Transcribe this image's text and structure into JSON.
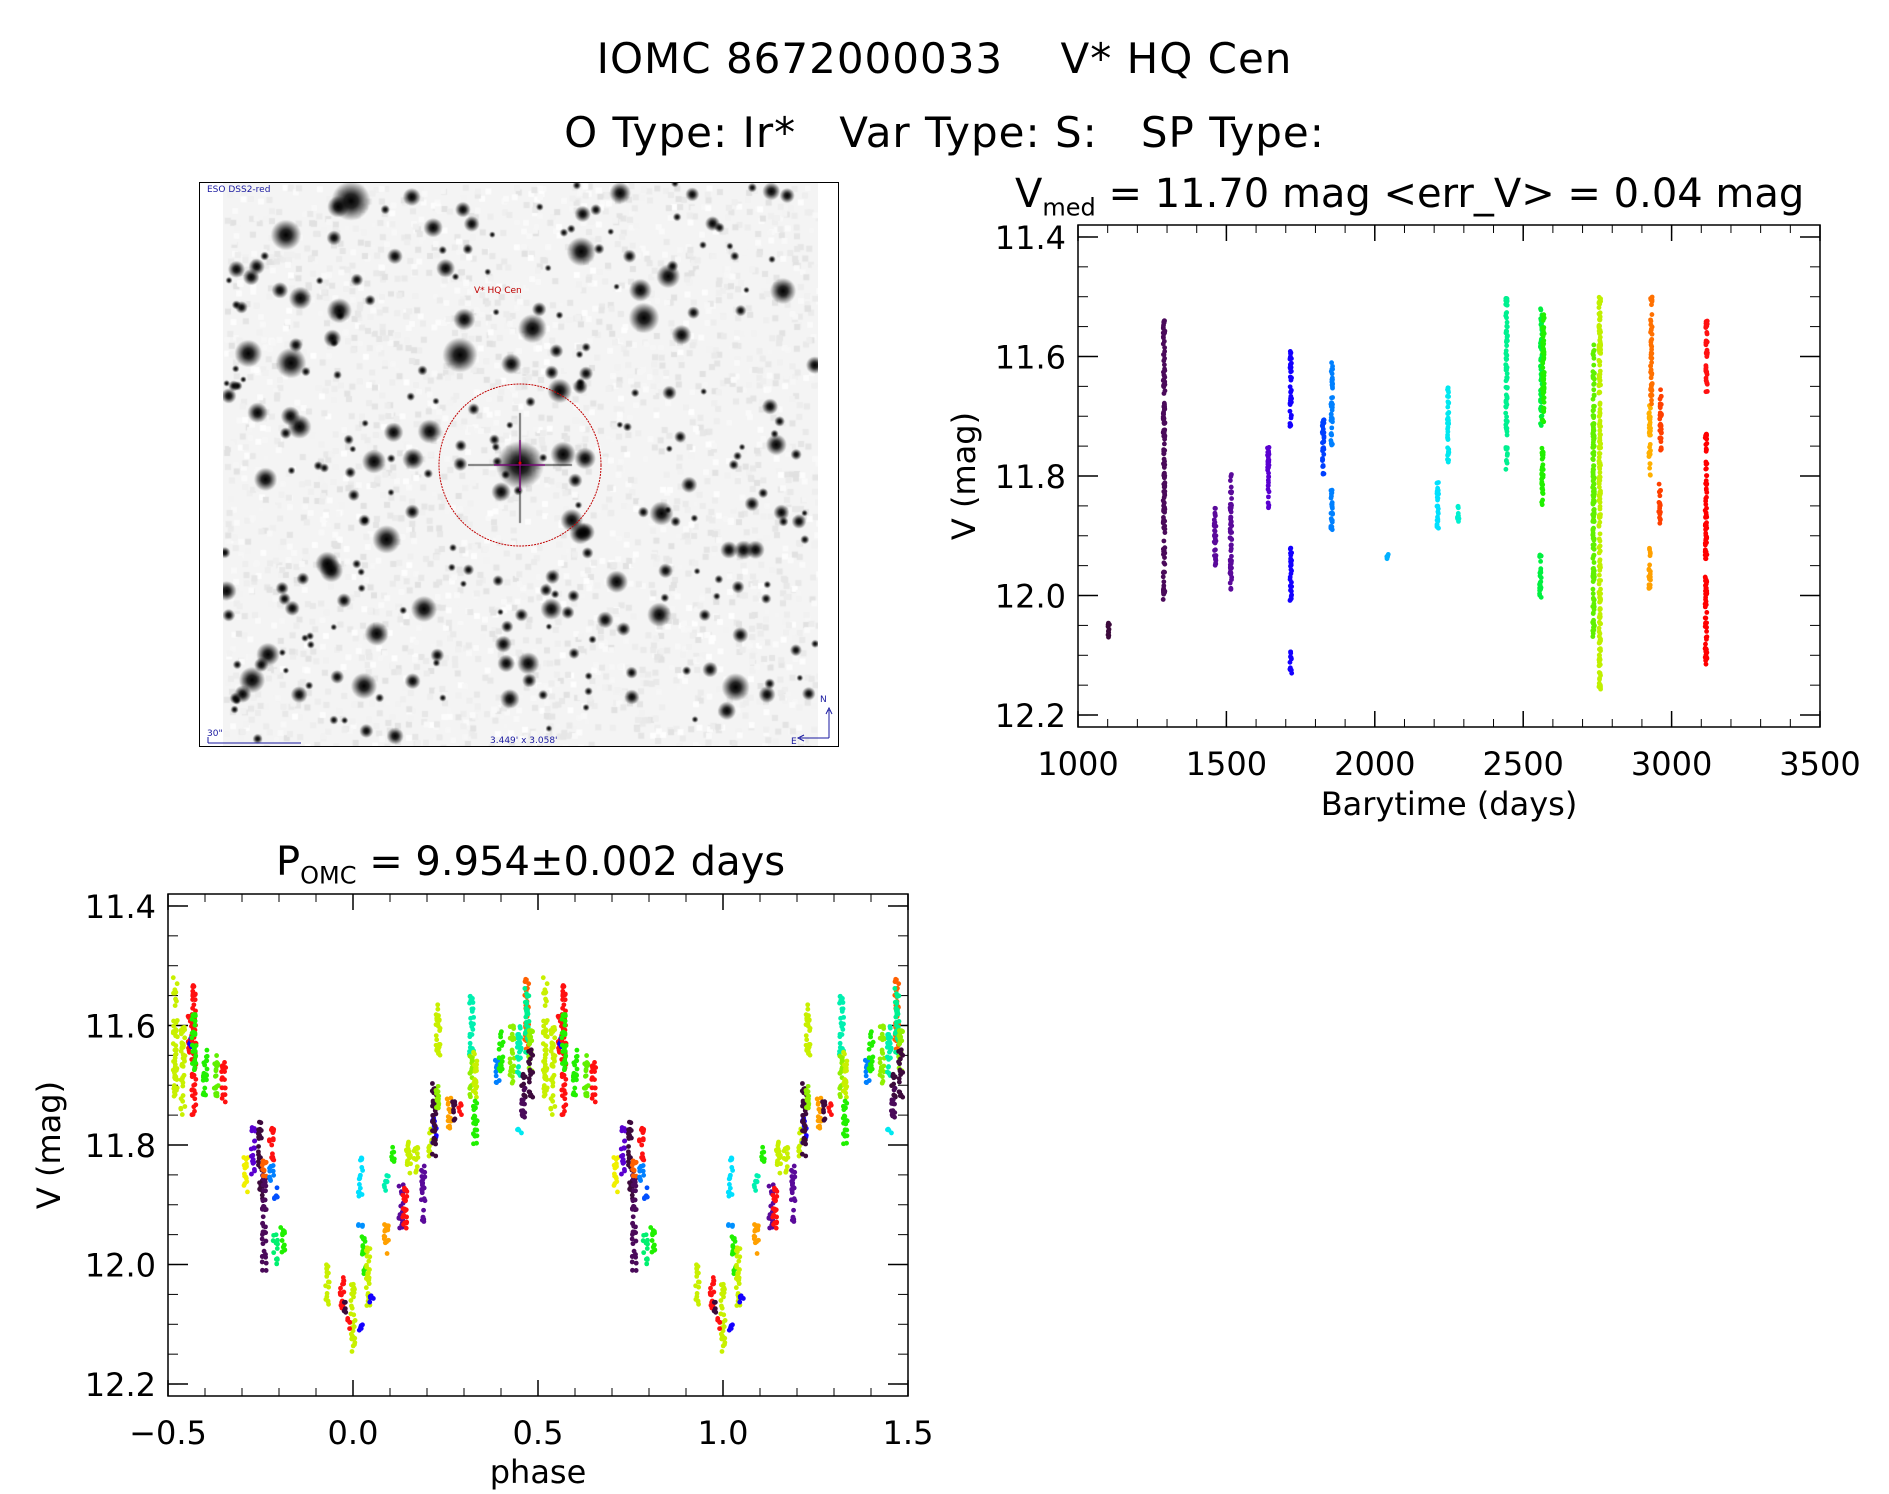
{
  "header": {
    "title": "IOMC 8672000033    V* HQ Cen",
    "subtitle": "O Type: Ir*   Var Type: S:   SP Type:"
  },
  "finder_image": {
    "survey_label": "ESO DSS2-red",
    "target_label": "V* HQ Cen",
    "scale_label": "30\"",
    "field_size": "3.449' x 3.058'",
    "north_label": "N",
    "east_label": "E"
  },
  "chart_data": [
    {
      "type": "scatter",
      "title_main": "V",
      "title_sub": "med",
      "title_rest": " = 11.70 mag <err_V> = 0.04 mag",
      "xlabel": "Barytime (days)",
      "ylabel": "V (mag)",
      "xlim": [
        1000,
        3500
      ],
      "ylim": [
        11.38,
        12.22
      ],
      "y_inverted": true,
      "xticks": [
        "1000",
        "1500",
        "2000",
        "2500",
        "3000",
        "3500"
      ],
      "yticks": [
        "11.4",
        "11.6",
        "11.8",
        "12.0",
        "12.2"
      ],
      "groups": [
        {
          "t": 1104,
          "v": [
            12.04,
            12.07
          ],
          "color": "#3c0a3c"
        },
        {
          "t": 1290,
          "v": [
            11.54,
            12.01
          ],
          "color": "#4a0a5a"
        },
        {
          "t": 1462,
          "v": [
            11.85,
            11.95
          ],
          "color": "#5a0a9a"
        },
        {
          "t": 1515,
          "v": [
            11.79,
            11.99
          ],
          "color": "#5a0a9a"
        },
        {
          "t": 1641,
          "v": [
            11.75,
            11.86
          ],
          "color": "#5a00d0"
        },
        {
          "t": 1717,
          "v": [
            11.59,
            11.72
          ],
          "color": "#1400ff"
        },
        {
          "t": 1717,
          "v": [
            11.92,
            12.01
          ],
          "color": "#1400ff"
        },
        {
          "t": 1717,
          "v": [
            12.09,
            12.13
          ],
          "color": "#1400ff"
        },
        {
          "t": 1826,
          "v": [
            11.69,
            11.8
          ],
          "color": "#0040ff"
        },
        {
          "t": 1855,
          "v": [
            11.61,
            11.75
          ],
          "color": "#0080ff"
        },
        {
          "t": 1855,
          "v": [
            11.82,
            11.9
          ],
          "color": "#0080ff"
        },
        {
          "t": 2043,
          "v": [
            11.93,
            11.94
          ],
          "color": "#00b0ff"
        },
        {
          "t": 2212,
          "v": [
            11.8,
            11.89
          ],
          "color": "#00e0ff"
        },
        {
          "t": 2247,
          "v": [
            11.65,
            11.78
          ],
          "color": "#00e8f0"
        },
        {
          "t": 2281,
          "v": [
            11.85,
            11.88
          ],
          "color": "#00f0d0"
        },
        {
          "t": 2444,
          "v": [
            11.5,
            11.79
          ],
          "color": "#00f090"
        },
        {
          "t": 2561,
          "v": [
            11.52,
            11.72
          ],
          "color": "#00f040"
        },
        {
          "t": 2568,
          "v": [
            11.53,
            11.71
          ],
          "color": "#20f000"
        },
        {
          "t": 2565,
          "v": [
            11.75,
            11.85
          ],
          "color": "#20f000"
        },
        {
          "t": 2558,
          "v": [
            11.93,
            12.01
          ],
          "color": "#00f040"
        },
        {
          "t": 2737,
          "v": [
            11.58,
            12.07
          ],
          "color": "#60f000"
        },
        {
          "t": 2758,
          "v": [
            11.5,
            12.16
          ],
          "color": "#c0f000"
        },
        {
          "t": 2926,
          "v": [
            11.68,
            11.8
          ],
          "color": "#ffb000"
        },
        {
          "t": 2926,
          "v": [
            11.92,
            11.99
          ],
          "color": "#ffa000"
        },
        {
          "t": 2932,
          "v": [
            11.5,
            11.68
          ],
          "color": "#ff7000"
        },
        {
          "t": 2963,
          "v": [
            11.65,
            11.76
          ],
          "color": "#ff4000"
        },
        {
          "t": 2960,
          "v": [
            11.81,
            11.88
          ],
          "color": "#ff4000"
        },
        {
          "t": 3118,
          "v": [
            11.54,
            11.66
          ],
          "color": "#ff1010"
        },
        {
          "t": 3116,
          "v": [
            11.73,
            11.94
          ],
          "color": "#ff0000"
        },
        {
          "t": 3116,
          "v": [
            11.96,
            12.12
          ],
          "color": "#ff0000"
        }
      ]
    },
    {
      "type": "scatter",
      "title_main": "P",
      "title_sub": "OMC",
      "title_rest": " = 9.954±0.002 days",
      "xlabel": "phase",
      "ylabel": "V (mag)",
      "xlim": [
        -0.5,
        1.5
      ],
      "ylim": [
        11.38,
        12.22
      ],
      "y_inverted": true,
      "xticks": [
        "−0.5",
        "0.0",
        "0.5",
        "1.0",
        "1.5"
      ],
      "yticks": [
        "11.4",
        "11.6",
        "11.8",
        "12.0",
        "12.2"
      ],
      "period_days": 9.954,
      "phase_groups": [
        {
          "p": -0.48,
          "v": [
            11.52,
            11.72
          ],
          "color": "#c8f000"
        },
        {
          "p": -0.46,
          "v": [
            11.6,
            11.75
          ],
          "color": "#c8f000"
        },
        {
          "p": -0.44,
          "v": [
            11.58,
            11.65
          ],
          "color": "#ff1010"
        },
        {
          "p": -0.44,
          "v": [
            11.61,
            11.64
          ],
          "color": "#1400ff"
        },
        {
          "p": -0.43,
          "v": [
            11.53,
            11.75
          ],
          "color": "#ff1010"
        },
        {
          "p": -0.43,
          "v": [
            11.58,
            11.68
          ],
          "color": "#20f000"
        },
        {
          "p": -0.4,
          "v": [
            11.64,
            11.72
          ],
          "color": "#20f000"
        },
        {
          "p": -0.37,
          "v": [
            11.65,
            11.72
          ],
          "color": "#60f000"
        },
        {
          "p": -0.35,
          "v": [
            11.66,
            11.73
          ],
          "color": "#ff1010"
        },
        {
          "p": -0.29,
          "v": [
            11.82,
            11.88
          ],
          "color": "#f0f000"
        },
        {
          "p": -0.27,
          "v": [
            11.77,
            11.85
          ],
          "color": "#5a00d0"
        },
        {
          "p": -0.25,
          "v": [
            11.76,
            11.89
          ],
          "color": "#3c0a3c"
        },
        {
          "p": -0.24,
          "v": [
            11.84,
            12.01
          ],
          "color": "#4a0a5a"
        },
        {
          "p": -0.24,
          "v": [
            11.82,
            11.86
          ],
          "color": "#ff6000"
        },
        {
          "p": -0.22,
          "v": [
            11.77,
            11.83
          ],
          "color": "#ff1010"
        },
        {
          "p": -0.22,
          "v": [
            11.83,
            11.87
          ],
          "color": "#0080ff"
        },
        {
          "p": -0.21,
          "v": [
            11.87,
            11.89
          ],
          "color": "#0050ff"
        },
        {
          "p": -0.19,
          "v": [
            11.93,
            11.98
          ],
          "color": "#20f000"
        },
        {
          "p": -0.21,
          "v": [
            11.95,
            12.0
          ],
          "color": "#00f070"
        },
        {
          "p": -0.07,
          "v": [
            12.0,
            12.07
          ],
          "color": "#c8f000"
        },
        {
          "p": -0.03,
          "v": [
            12.02,
            12.08
          ],
          "color": "#ff1010"
        },
        {
          "p": -0.02,
          "v": [
            12.06,
            12.08
          ],
          "color": "#3c0a3c"
        },
        {
          "p": 0.0,
          "v": [
            12.03,
            12.15
          ],
          "color": "#c8f000"
        },
        {
          "p": -0.01,
          "v": [
            12.09,
            12.11
          ],
          "color": "#ff1010"
        },
        {
          "p": 0.02,
          "v": [
            11.82,
            11.89
          ],
          "color": "#00e0ff"
        },
        {
          "p": 0.02,
          "v": [
            12.1,
            12.12
          ],
          "color": "#1400ff"
        },
        {
          "p": 0.02,
          "v": [
            11.93,
            11.94
          ],
          "color": "#0090ff"
        },
        {
          "p": 0.03,
          "v": [
            11.95,
            12.02
          ],
          "color": "#20f000"
        },
        {
          "p": 0.04,
          "v": [
            11.97,
            12.07
          ],
          "color": "#c8f000"
        },
        {
          "p": 0.05,
          "v": [
            12.05,
            12.07
          ],
          "color": "#1400ff"
        },
        {
          "p": 0.09,
          "v": [
            11.93,
            11.99
          ],
          "color": "#ffa000"
        },
        {
          "p": 0.09,
          "v": [
            11.85,
            11.88
          ],
          "color": "#00f0b0"
        },
        {
          "p": 0.11,
          "v": [
            11.8,
            11.83
          ],
          "color": "#20f000"
        },
        {
          "p": 0.13,
          "v": [
            11.86,
            11.94
          ],
          "color": "#5a0a9a"
        },
        {
          "p": 0.14,
          "v": [
            11.87,
            11.95
          ],
          "color": "#ff1010"
        },
        {
          "p": 0.15,
          "v": [
            11.78,
            11.85
          ],
          "color": "#c8f000"
        },
        {
          "p": 0.17,
          "v": [
            11.8,
            11.85
          ],
          "color": "#c8f000"
        },
        {
          "p": 0.19,
          "v": [
            11.83,
            11.93
          ],
          "color": "#5a0a9a"
        },
        {
          "p": 0.21,
          "v": [
            11.77,
            11.82
          ],
          "color": "#c8f000"
        },
        {
          "p": 0.22,
          "v": [
            11.75,
            11.8
          ],
          "color": "#1400ff"
        },
        {
          "p": 0.22,
          "v": [
            11.69,
            11.82
          ],
          "color": "#3c0a3c"
        },
        {
          "p": 0.23,
          "v": [
            11.7,
            11.75
          ],
          "color": "#90f000"
        },
        {
          "p": 0.23,
          "v": [
            11.55,
            11.65
          ],
          "color": "#c8f000"
        },
        {
          "p": 0.26,
          "v": [
            11.72,
            11.78
          ],
          "color": "#ffa000"
        },
        {
          "p": 0.27,
          "v": [
            11.72,
            11.76
          ],
          "color": "#3c0a3c"
        },
        {
          "p": 0.29,
          "v": [
            11.73,
            11.75
          ],
          "color": "#ff1010"
        },
        {
          "p": 0.32,
          "v": [
            11.55,
            11.65
          ],
          "color": "#00f0b0"
        },
        {
          "p": 0.32,
          "v": [
            11.65,
            11.72
          ],
          "color": "#90f000"
        },
        {
          "p": 0.33,
          "v": [
            11.64,
            11.72
          ],
          "color": "#c8f000"
        },
        {
          "p": 0.33,
          "v": [
            11.72,
            11.8
          ],
          "color": "#20f000"
        },
        {
          "p": 0.39,
          "v": [
            11.65,
            11.7
          ],
          "color": "#0080ff"
        },
        {
          "p": 0.4,
          "v": [
            11.61,
            11.68
          ],
          "color": "#20f000"
        },
        {
          "p": 0.43,
          "v": [
            11.6,
            11.7
          ],
          "color": "#90f000"
        },
        {
          "p": 0.45,
          "v": [
            11.6,
            11.7
          ],
          "color": "#00f0b0"
        },
        {
          "p": 0.45,
          "v": [
            11.77,
            11.78
          ],
          "color": "#00e8f0"
        },
        {
          "p": 0.46,
          "v": [
            11.68,
            11.72
          ],
          "color": "#3c0a3c"
        },
        {
          "p": 0.46,
          "v": [
            11.7,
            11.76
          ],
          "color": "#4a0a5a"
        },
        {
          "p": 0.47,
          "v": [
            11.52,
            11.65
          ],
          "color": "#ff6000"
        },
        {
          "p": 0.47,
          "v": [
            11.53,
            11.65
          ],
          "color": "#00f090"
        },
        {
          "p": 0.48,
          "v": [
            11.6,
            11.68
          ],
          "color": "#90f000"
        },
        {
          "p": 0.48,
          "v": [
            11.64,
            11.72
          ],
          "color": "#3c0a3c"
        }
      ]
    }
  ]
}
